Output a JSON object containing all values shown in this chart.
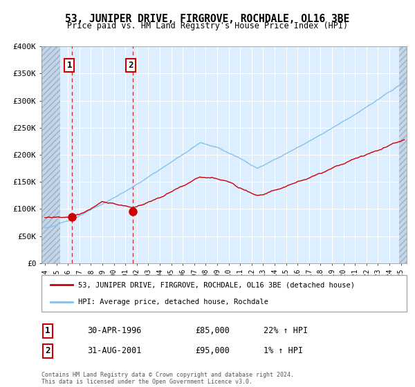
{
  "title": "53, JUNIPER DRIVE, FIRGROVE, ROCHDALE, OL16 3BE",
  "subtitle": "Price paid vs. HM Land Registry's House Price Index (HPI)",
  "ylim": [
    0,
    400000
  ],
  "yticks": [
    0,
    50000,
    100000,
    150000,
    200000,
    250000,
    300000,
    350000,
    400000
  ],
  "ytick_labels": [
    "£0",
    "£50K",
    "£100K",
    "£150K",
    "£200K",
    "£250K",
    "£300K",
    "£350K",
    "£400K"
  ],
  "xmin": 1993.7,
  "xmax": 2025.5,
  "left_hatch_end": 1995.3,
  "right_hatch_start": 2024.85,
  "sale1_year": 1996.33,
  "sale1_price": 85000,
  "sale2_year": 2001.67,
  "sale2_price": 95000,
  "hpi_color": "#85c1e9",
  "price_color": "#cc0000",
  "background_color": "#ddeeff",
  "hatch_bg_color": "#c5d5e8",
  "grid_color": "#ffffff",
  "legend_label1": "53, JUNIPER DRIVE, FIRGROVE, ROCHDALE, OL16 3BE (detached house)",
  "legend_label2": "HPI: Average price, detached house, Rochdale",
  "footer_text": "Contains HM Land Registry data © Crown copyright and database right 2024.\nThis data is licensed under the Open Government Licence v3.0."
}
